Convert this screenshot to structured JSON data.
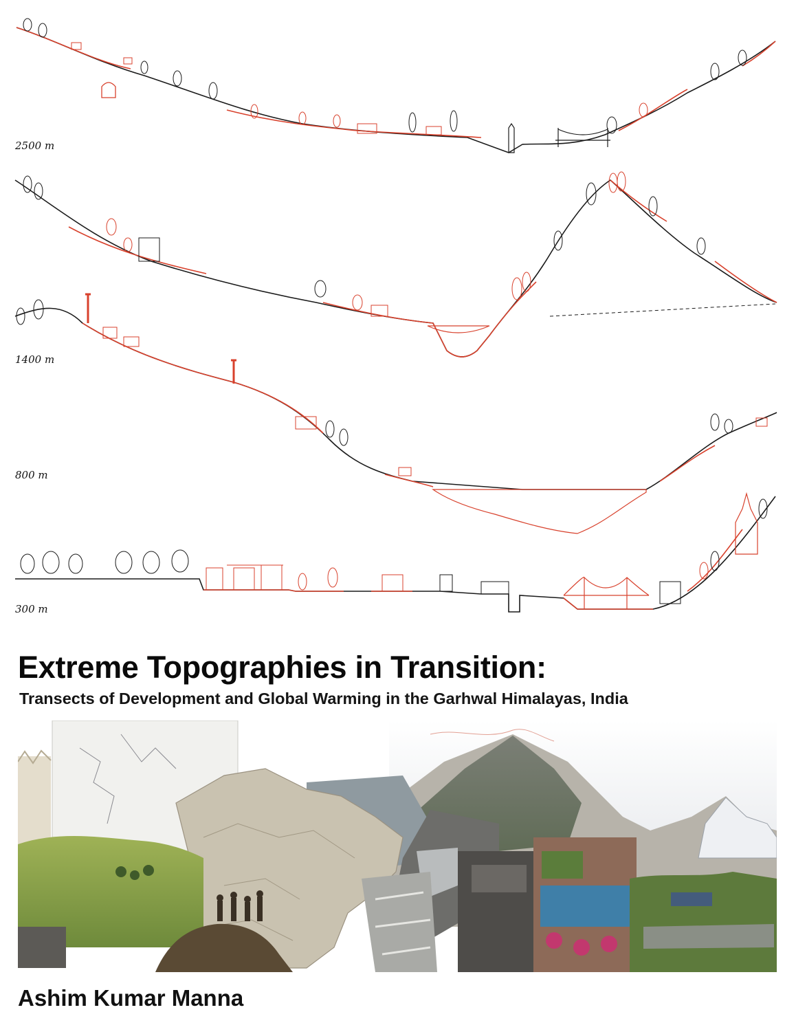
{
  "elevation_labels": [
    "2500 m",
    "1400 m",
    "800 m",
    "300 m"
  ],
  "title": "Extreme Topographies in Transition:",
  "subtitle": "Transects of Development and Global Warming in the Garhwal Himalayas, India",
  "author": "Ashim Kumar Manna",
  "colors": {
    "transect_red": "#d8412c",
    "transect_black": "#1a1a1a",
    "text": "#0a0a0a",
    "background": "#ffffff"
  }
}
